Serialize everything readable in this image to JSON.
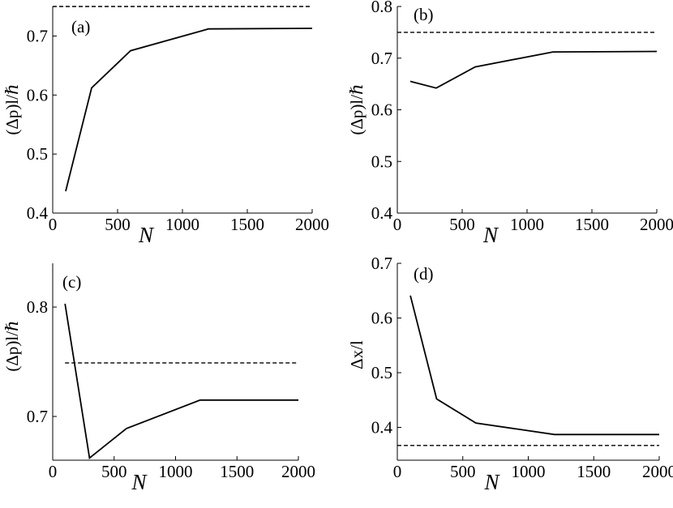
{
  "chart_data": [
    {
      "type": "line",
      "panel_label": "(a)",
      "xlabel": "N",
      "ylabel": "(Δp)l/ℏ",
      "xlim": [
        0,
        2000
      ],
      "ylim": [
        0.4,
        0.75
      ],
      "xticks": [
        0,
        500,
        1000,
        1500,
        2000
      ],
      "yticks": [
        0.4,
        0.5,
        0.6,
        0.7
      ],
      "x": [
        100,
        300,
        600,
        1200,
        2000
      ],
      "series": [
        {
          "name": "solid",
          "style": "solid",
          "values": [
            0.437,
            0.612,
            0.675,
            0.712,
            0.713
          ]
        },
        {
          "name": "dashed",
          "style": "dashed",
          "x": [
            0,
            2000
          ],
          "values": [
            0.75,
            0.75
          ]
        }
      ]
    },
    {
      "type": "line",
      "panel_label": "(b)",
      "xlabel": "N",
      "ylabel": "(Δp)l/ℏ",
      "xlim": [
        0,
        2000
      ],
      "ylim": [
        0.4,
        0.8
      ],
      "xticks": [
        0,
        500,
        1000,
        1500,
        2000
      ],
      "yticks": [
        0.4,
        0.5,
        0.6,
        0.7,
        0.8
      ],
      "x": [
        100,
        300,
        600,
        1200,
        2000
      ],
      "series": [
        {
          "name": "solid",
          "style": "solid",
          "values": [
            0.655,
            0.642,
            0.683,
            0.712,
            0.713
          ]
        },
        {
          "name": "dashed",
          "style": "dashed",
          "x": [
            0,
            2000
          ],
          "values": [
            0.75,
            0.75
          ]
        }
      ]
    },
    {
      "type": "line",
      "panel_label": "(c)",
      "xlabel": "N",
      "ylabel": "(Δp)l/ℏ",
      "xlim": [
        0,
        2000
      ],
      "ylim": [
        0.66,
        0.84
      ],
      "xticks": [
        0,
        500,
        1000,
        1500,
        2000
      ],
      "yticks": [
        0.7,
        0.8
      ],
      "x": [
        100,
        300,
        600,
        1200,
        2000
      ],
      "series": [
        {
          "name": "solid",
          "style": "solid",
          "values": [
            0.803,
            0.662,
            0.689,
            0.715,
            0.715
          ]
        },
        {
          "name": "dashed",
          "style": "dashed",
          "x": [
            100,
            2000
          ],
          "values": [
            0.749,
            0.749
          ]
        }
      ]
    },
    {
      "type": "line",
      "panel_label": "(d)",
      "xlabel": "N",
      "ylabel": "Δx/l",
      "xlim": [
        0,
        2000
      ],
      "ylim": [
        0.34,
        0.7
      ],
      "xticks": [
        0,
        500,
        1000,
        1500,
        2000
      ],
      "yticks": [
        0.4,
        0.5,
        0.6,
        0.7
      ],
      "x": [
        100,
        300,
        600,
        1200,
        2000
      ],
      "series": [
        {
          "name": "solid",
          "style": "solid",
          "values": [
            0.641,
            0.452,
            0.408,
            0.387,
            0.387
          ]
        },
        {
          "name": "dashed",
          "style": "dashed",
          "x": [
            0,
            2000
          ],
          "values": [
            0.367,
            0.367
          ]
        }
      ]
    }
  ]
}
